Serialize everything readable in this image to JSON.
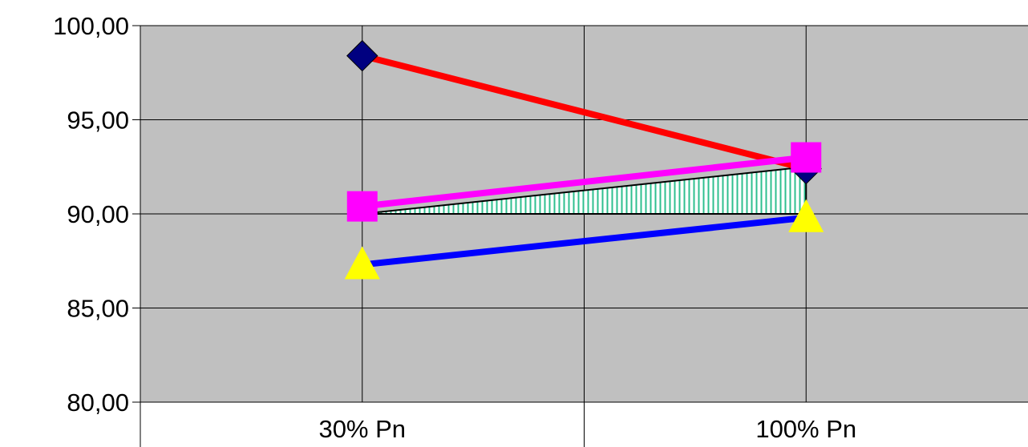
{
  "chart_data": {
    "type": "line",
    "title": "",
    "xlabel": "",
    "ylabel": "",
    "categories": [
      "30% Pn",
      "100% Pn"
    ],
    "ylim": [
      80,
      100
    ],
    "yticks": [
      80,
      85,
      90,
      95,
      100
    ],
    "ytick_labels": [
      "80,00",
      "85,00",
      "90,00",
      "95,00",
      "100,00"
    ],
    "grid": true,
    "plot_background": "#c0c0c0",
    "series": [
      {
        "values": [
          98.4,
          92.4
        ],
        "line_color": "#ff0000",
        "marker": "diamond",
        "marker_color": "#000080"
      },
      {
        "values": [
          90.4,
          93.0
        ],
        "line_color": "#ff00ff",
        "marker": "square",
        "marker_color": "#ff00ff"
      },
      {
        "values": [
          87.3,
          89.8
        ],
        "line_color": "#0000ff",
        "marker": "triangle",
        "marker_color": "#ffff00"
      }
    ],
    "band": {
      "lower": [
        90.0,
        90.0
      ],
      "upper": [
        90.0,
        92.5
      ],
      "fill_pattern": "vertical-hatch",
      "fill_color": "#2fbf8f"
    }
  }
}
